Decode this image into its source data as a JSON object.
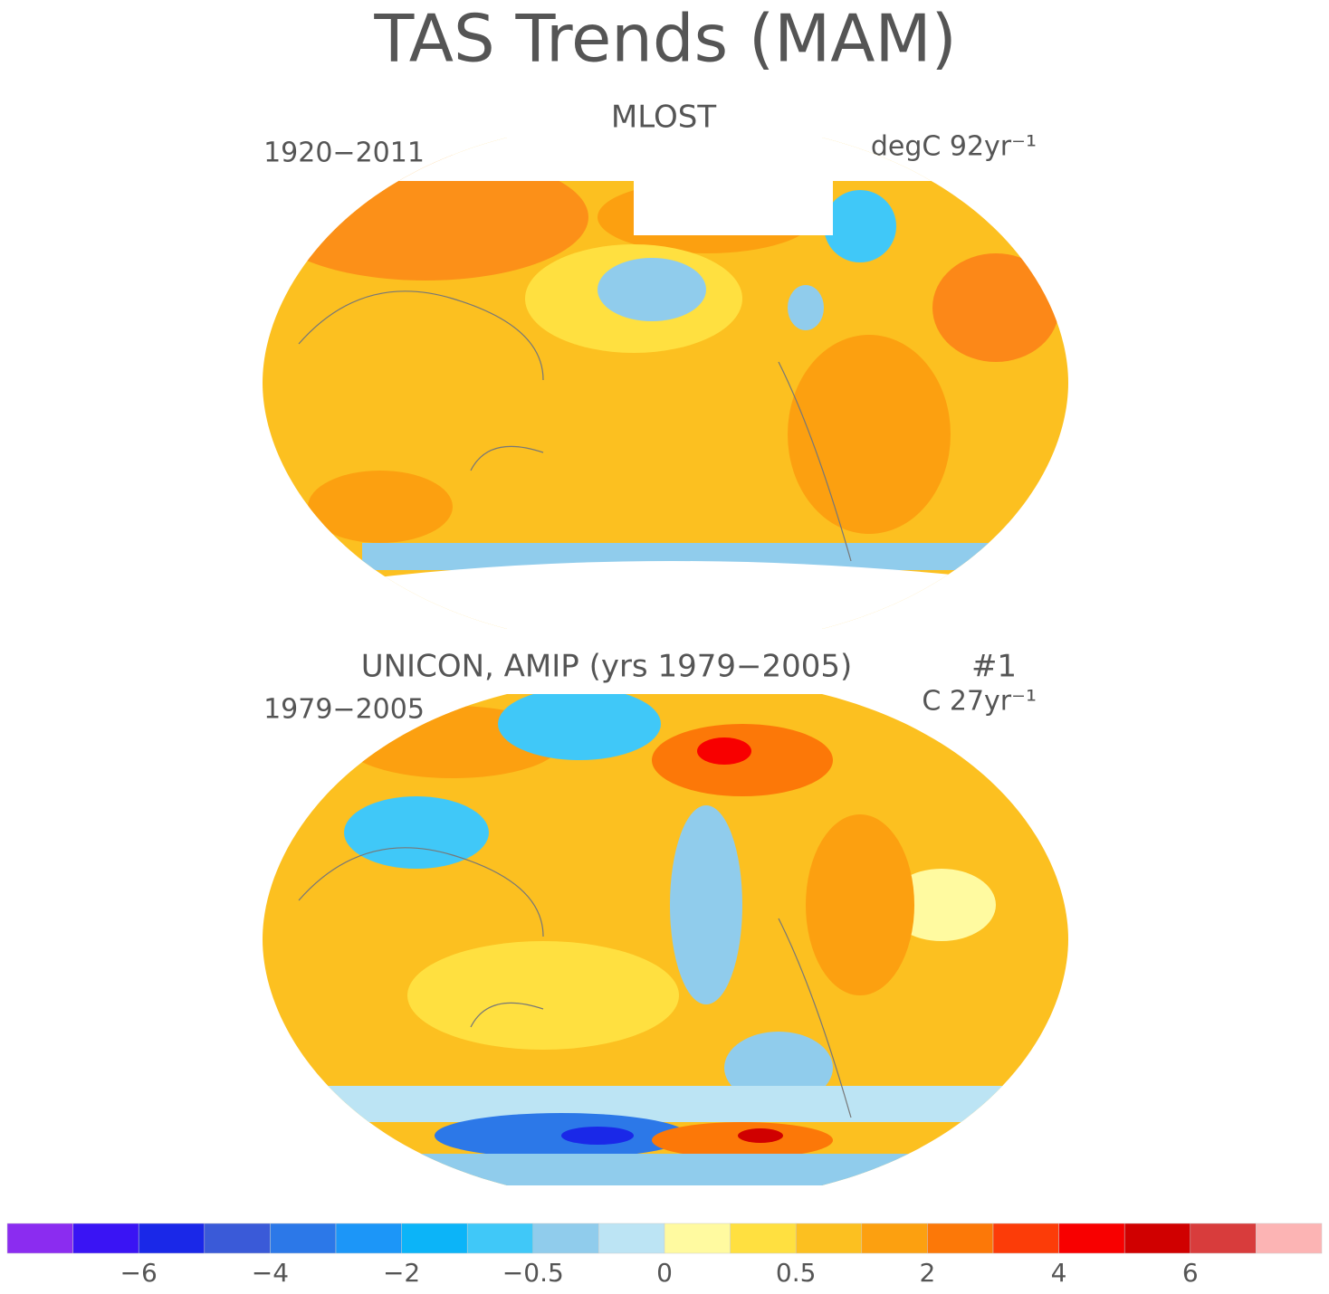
{
  "title": "TAS Trends (MAM)",
  "panels": [
    {
      "title": "MLOST",
      "left_label": "1920−2011",
      "right_label": "degC 92yr⁻¹"
    },
    {
      "title": "UNICON, AMIP (yrs 1979−2005)",
      "title_right": "#1",
      "left_label": "1979−2005",
      "right_label": "C 27yr⁻¹"
    }
  ],
  "colorbar": {
    "colors": [
      "#8b2cf0",
      "#3a14f4",
      "#1a28e8",
      "#3a5ad8",
      "#2c78e8",
      "#1c96f8",
      "#0cb4f8",
      "#40c8f8",
      "#90ccec",
      "#bce4f4",
      "#fffaa0",
      "#ffe040",
      "#fcc020",
      "#fca010",
      "#fc7808",
      "#fc3c08",
      "#f80000",
      "#d00000",
      "#d83c3c",
      "#fcb4b4"
    ],
    "ticks": [
      {
        "value": -6,
        "label": "−6"
      },
      {
        "value": -4,
        "label": "−4"
      },
      {
        "value": -2,
        "label": "−2"
      },
      {
        "value": -0.5,
        "label": "−0.5"
      },
      0,
      0.5,
      2,
      4,
      6
    ]
  }
}
